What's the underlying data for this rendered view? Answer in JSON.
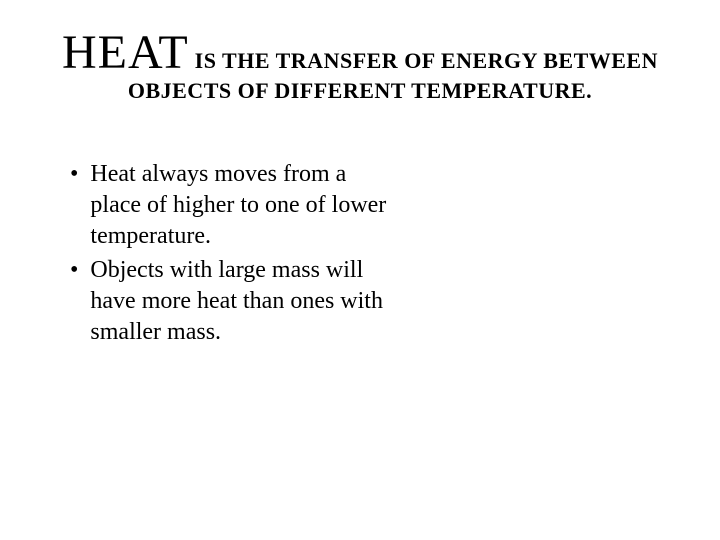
{
  "title": {
    "bigWord": "HEAT",
    "line1Rest": " IS THE TRANSFER OF ENERGY BETWEEN",
    "line2": "OBJECTS OF DIFFERENT TEMPERATURE."
  },
  "bullets": [
    {
      "marker": "•",
      "text": "Heat always moves from a place of higher to one of  lower temperature."
    },
    {
      "marker": "•",
      "text": "Objects with large mass will have more heat than ones with smaller mass."
    }
  ],
  "colors": {
    "background": "#ffffff",
    "text": "#000000"
  },
  "fonts": {
    "family": "Times New Roman",
    "titleBigSize": 48,
    "titleRestSize": 22,
    "bodySize": 24
  }
}
